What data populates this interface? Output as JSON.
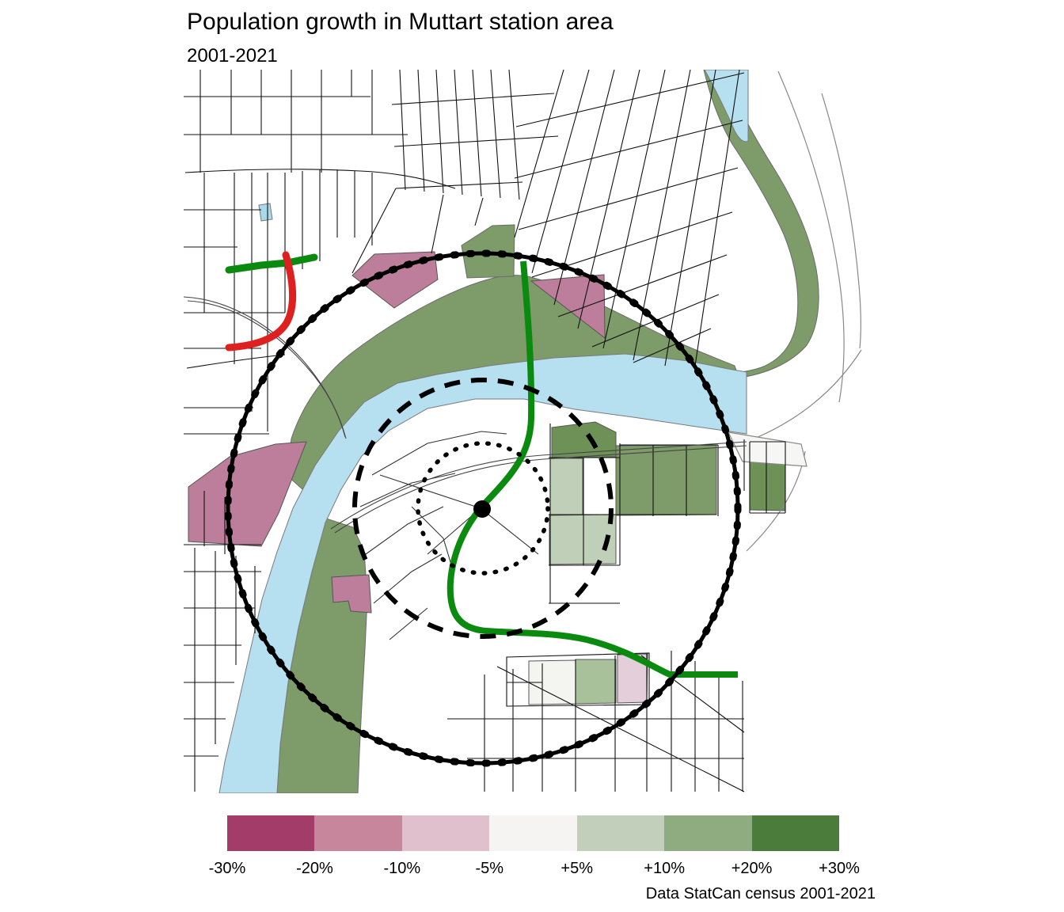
{
  "header": {
    "title": "Population growth in Muttart station area",
    "subtitle": "2001-2021"
  },
  "legend": {
    "stops": [
      "-30%",
      "-20%",
      "-10%",
      "-5%",
      "+5%",
      "+10%",
      "+20%",
      "+30%"
    ],
    "bin_colors": [
      "#a43c6a",
      "#c8869d",
      "#dfc0cc",
      "#f5f4f2",
      "#c2d0bb",
      "#8eac80",
      "#4c7c3b"
    ]
  },
  "caption": "Data StatCan census 2001-2021",
  "map": {
    "colors": {
      "river": "#b6dfef",
      "pond": "#aad8e8",
      "valley_green": "#7e9c6a",
      "dark_green_block": "#6e9157",
      "light_green_block": "#c0cfb8",
      "mid_green_block": "#a9c19a",
      "pink_block": "#bd7e9b",
      "light_pink_block": "#e4ceda",
      "neutral_block": "#f4f4f1",
      "street": "#111111",
      "contour": "#888888",
      "transit_line": "#0a8a0f",
      "red_line": "#dd2121",
      "ring": "#000000"
    }
  }
}
